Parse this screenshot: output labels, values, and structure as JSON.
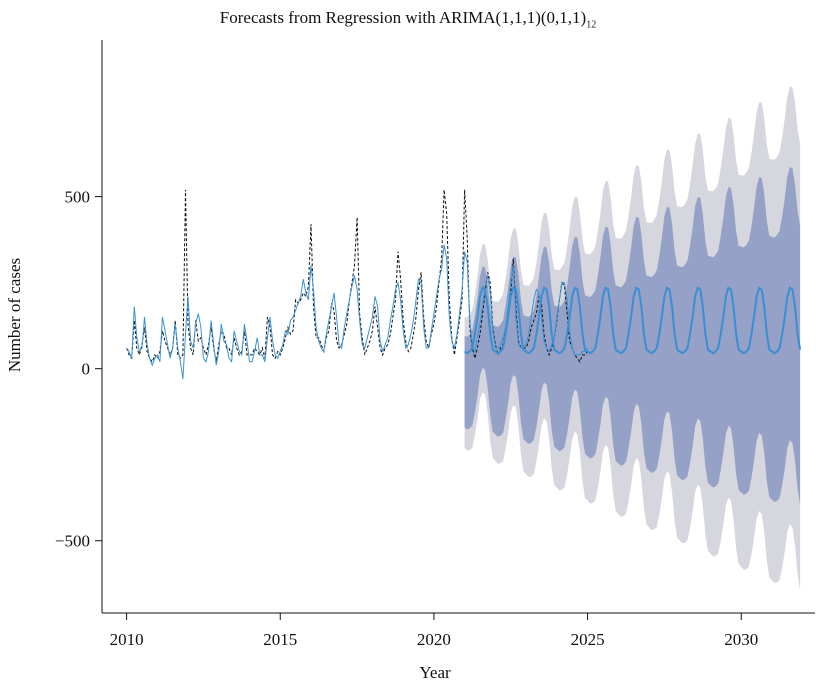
{
  "chart_data": {
    "type": "line",
    "title": "Forecasts from Regression with ARIMA(1,1,1)(0,1,1)",
    "title_subscript": "12",
    "xlabel": "Year",
    "ylabel": "Number of cases",
    "xlim": [
      2009.2,
      2032.4
    ],
    "ylim": [
      -710,
      955
    ],
    "x_ticks": [
      2010,
      2015,
      2020,
      2025,
      2030
    ],
    "y_ticks": [
      -500,
      0,
      500
    ],
    "x_tick_labels": [
      "2010",
      "2015",
      "2020",
      "2025",
      "2030"
    ],
    "y_tick_labels": [
      "−500",
      "0",
      "500"
    ],
    "grid": false,
    "legend": "none",
    "colors": {
      "observed": "#111111",
      "fitted": "#3a93d6",
      "forecast": "#3a8fd4",
      "band80": "#95a1c6",
      "band95": "#d5d6de"
    },
    "series": [
      {
        "role": "observed",
        "style": "dashed",
        "x_start": 2010.0,
        "step": 0.08333,
        "values": [
          60,
          40,
          30,
          140,
          60,
          40,
          70,
          120,
          50,
          30,
          20,
          40,
          30,
          50,
          110,
          80,
          60,
          40,
          60,
          140,
          40,
          30,
          40,
          520,
          130,
          60,
          40,
          140,
          80,
          90,
          60,
          40,
          70,
          120,
          60,
          20,
          70,
          110,
          100,
          60,
          60,
          40,
          90,
          60,
          40,
          50,
          110,
          40,
          40,
          40,
          60,
          50,
          40,
          60,
          30,
          150,
          120,
          40,
          30,
          50,
          40,
          60,
          90,
          120,
          100,
          110,
          200,
          190,
          200,
          220,
          210,
          240,
          420,
          180,
          90,
          90,
          70,
          50,
          90,
          110,
          190,
          170,
          80,
          60,
          70,
          100,
          130,
          200,
          250,
          300,
          440,
          160,
          90,
          40,
          60,
          80,
          110,
          180,
          120,
          60,
          40,
          60,
          70,
          100,
          150,
          200,
          340,
          260,
          140,
          80,
          50,
          60,
          100,
          150,
          230,
          280,
          150,
          80,
          60,
          100,
          130,
          180,
          250,
          320,
          520,
          450,
          200,
          90,
          40,
          90,
          140,
          200,
          520,
          380,
          120,
          60,
          30,
          60,
          100,
          160,
          220,
          280,
          250,
          120,
          70,
          40,
          60,
          70,
          110,
          160,
          220,
          320,
          180,
          80,
          60,
          60,
          60,
          80,
          120,
          140,
          160,
          210,
          190,
          100,
          60,
          40,
          60,
          90,
          140,
          200,
          250,
          240,
          160,
          80,
          60,
          40,
          30,
          20,
          40,
          40,
          50
        ]
      },
      {
        "role": "fitted",
        "style": "solid",
        "x_start": 2010.0,
        "step": 0.08333,
        "values": [
          60,
          50,
          30,
          180,
          90,
          50,
          60,
          150,
          70,
          30,
          10,
          30,
          40,
          20,
          150,
          110,
          70,
          30,
          60,
          130,
          60,
          20,
          -30,
          100,
          210,
          80,
          60,
          130,
          160,
          120,
          30,
          20,
          50,
          140,
          70,
          10,
          50,
          130,
          80,
          70,
          30,
          20,
          110,
          80,
          50,
          40,
          130,
          80,
          20,
          20,
          50,
          90,
          40,
          40,
          20,
          90,
          150,
          80,
          40,
          30,
          50,
          70,
          110,
          100,
          140,
          150,
          170,
          190,
          210,
          260,
          220,
          200,
          300,
          230,
          120,
          80,
          60,
          50,
          100,
          140,
          180,
          220,
          150,
          70,
          60,
          120,
          160,
          200,
          240,
          270,
          230,
          140,
          70,
          60,
          90,
          120,
          150,
          210,
          180,
          80,
          50,
          70,
          90,
          140,
          180,
          230,
          250,
          200,
          110,
          60,
          70,
          100,
          140,
          200,
          260,
          250,
          120,
          60,
          60,
          110,
          160,
          210,
          260,
          290,
          360,
          320,
          150,
          80,
          60,
          100,
          160,
          230,
          340,
          310,
          140,
          70,
          50,
          90,
          130,
          180,
          240,
          270,
          220,
          110,
          60,
          60,
          70,
          90,
          120,
          180,
          250,
          300,
          150,
          70,
          60,
          60,
          70,
          100,
          150,
          200,
          230,
          220,
          150,
          80,
          60,
          50,
          70,
          90,
          150,
          200,
          250,
          250,
          200,
          110,
          60,
          40,
          40,
          40,
          50,
          50,
          60
        ]
      },
      {
        "role": "forecast",
        "style": "solid",
        "x_start": 2021.0,
        "step": 0.08333,
        "values": [
          50,
          45,
          50,
          60,
          100,
          150,
          210,
          235,
          230,
          180,
          100,
          55,
          50,
          45,
          50,
          60,
          100,
          150,
          210,
          235,
          230,
          180,
          100,
          55,
          50,
          45,
          50,
          60,
          100,
          150,
          210,
          235,
          230,
          180,
          100,
          55,
          50,
          45,
          50,
          60,
          100,
          150,
          210,
          235,
          230,
          180,
          100,
          55,
          50,
          45,
          50,
          60,
          100,
          150,
          210,
          235,
          230,
          180,
          100,
          55,
          50,
          45,
          50,
          60,
          100,
          150,
          210,
          235,
          230,
          180,
          100,
          55,
          50,
          45,
          50,
          60,
          100,
          150,
          210,
          235,
          230,
          180,
          100,
          55,
          50,
          45,
          50,
          60,
          100,
          150,
          210,
          235,
          230,
          180,
          100,
          55,
          50,
          45,
          50,
          60,
          100,
          150,
          210,
          235,
          230,
          180,
          100,
          55,
          50,
          45,
          50,
          60,
          100,
          150,
          210,
          235,
          230,
          180,
          100,
          55,
          50,
          45,
          50,
          60,
          100,
          150,
          210,
          235,
          230,
          180,
          100,
          55
        ]
      }
    ],
    "bands": [
      {
        "role": "band95",
        "x_start": 2021.0,
        "x_end": 2032.0,
        "lower_start": -140,
        "lower_end": -560,
        "upper_start": 240,
        "upper_end": 740
      },
      {
        "role": "band80",
        "x_start": 2021.0,
        "x_end": 2032.0,
        "lower_start": -80,
        "lower_end": -310,
        "upper_start": 185,
        "upper_end": 500
      }
    ]
  }
}
